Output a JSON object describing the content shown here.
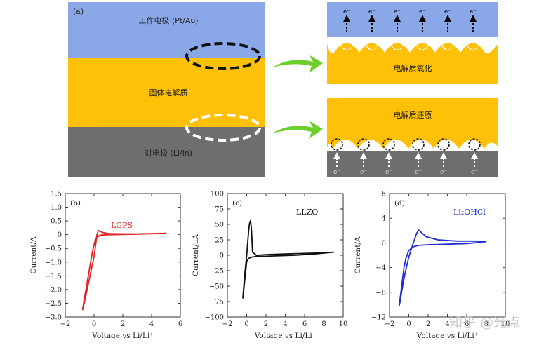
{
  "colors": {
    "electrode_blue": "#8aa8e8",
    "electrolyte_gold": "#ffc107",
    "counter_gray": "#6e6e6e",
    "arrow_green": "#6ccf2a",
    "lgps_red": "#e02020",
    "llzo_black": "#111111",
    "li2ohcl_blue": "#1f2fd0"
  },
  "panel_a": {
    "tag": "(a)",
    "working_electrode": "工作电极 (Pt/Au)",
    "solid_electrolyte": "固体电解质",
    "counter_electrode": "对电极 (Li/In)",
    "oxidation_label": "电解质氧化",
    "reduction_label": "电解质还原",
    "electron": "e⁻"
  },
  "watermark": "知乎 @光点",
  "chart_data": [
    {
      "type": "line",
      "panel": "(b)",
      "title": "LGPS",
      "xlabel": "Voltage vs Li/Li⁺",
      "ylabel": "Current/A",
      "xlim": [
        -2,
        6
      ],
      "ylim": [
        -3.0,
        1.5
      ],
      "xticks": [
        -2,
        0,
        2,
        4,
        6
      ],
      "yticks": [
        1.5,
        1.0,
        0.5,
        0,
        -0.5,
        -1.0,
        -1.5,
        -2.0,
        -2.5,
        -3.0
      ],
      "ytick_labels": [
        "1.5",
        "1.0",
        "0.5",
        "0",
        "−0.5",
        "−1.0",
        "−1.5",
        "−2.0",
        "−2.5",
        "−3.0"
      ],
      "series": [
        {
          "name": "LGPS",
          "color": "#e02020",
          "x": [
            -0.8,
            -0.6,
            -0.4,
            -0.2,
            0.0,
            0.1,
            0.2,
            0.3,
            0.6,
            1.0,
            2.0,
            3.0,
            4.0,
            5.0,
            3.0,
            1.0,
            0.4,
            0.1,
            -0.1,
            -0.3,
            -0.5,
            -0.7,
            -0.8
          ],
          "y": [
            -2.75,
            -2.3,
            -1.8,
            -1.3,
            -0.8,
            -0.4,
            0.0,
            0.15,
            0.08,
            0.04,
            0.03,
            0.03,
            0.04,
            0.05,
            0.02,
            0.0,
            -0.02,
            -0.15,
            -0.6,
            -1.2,
            -1.8,
            -2.4,
            -2.75
          ]
        }
      ]
    },
    {
      "type": "line",
      "panel": "(c)",
      "title": "LLZO",
      "xlabel": "Voltage vs Li/Li⁺",
      "ylabel": "Current/μA",
      "xlim": [
        -2,
        10
      ],
      "ylim": [
        -100,
        100
      ],
      "xticks": [
        -2,
        0,
        2,
        4,
        6,
        8,
        10
      ],
      "yticks": [
        100,
        75,
        50,
        25,
        0,
        -25,
        -50,
        -75,
        -100
      ],
      "ytick_labels": [
        "100",
        "75",
        "50",
        "25",
        "0",
        "−25",
        "−50",
        "−75",
        "−100"
      ],
      "series": [
        {
          "name": "LLZO",
          "color": "#111111",
          "x": [
            -0.4,
            -0.2,
            0.0,
            0.1,
            0.2,
            0.3,
            0.4,
            0.5,
            0.6,
            1.0,
            2.0,
            4.0,
            6.0,
            8.0,
            9.0,
            7.0,
            5.0,
            3.0,
            1.0,
            0.5,
            0.2,
            0.0,
            -0.2,
            -0.4
          ],
          "y": [
            -70,
            -30,
            0,
            20,
            40,
            52,
            56,
            40,
            5,
            0,
            1,
            2,
            3,
            4,
            5,
            2,
            0,
            -1,
            -2,
            -3,
            -5,
            -10,
            -40,
            -70
          ]
        }
      ]
    },
    {
      "type": "line",
      "panel": "(d)",
      "title": "Li₂OHCl",
      "xlabel": "Voltage vs Li/Li⁺",
      "ylabel": "Current/A",
      "xlim": [
        -2,
        10
      ],
      "ylim": [
        -12,
        8
      ],
      "xticks": [
        -2,
        0,
        2,
        4,
        6,
        8,
        10
      ],
      "yticks": [
        8,
        4,
        0,
        -4,
        -8,
        -12
      ],
      "ytick_labels": [
        "8",
        "4",
        "0",
        "−4",
        "−8",
        "−12"
      ],
      "series": [
        {
          "name": "Li2OHCl",
          "color": "#1f2fd0",
          "x": [
            -1.0,
            -0.9,
            -0.7,
            -0.4,
            0.0,
            0.4,
            0.8,
            1.0,
            1.3,
            1.8,
            3.0,
            5.0,
            7.0,
            8.0,
            6.0,
            4.0,
            2.0,
            1.0,
            0.5,
            0.0,
            -0.3,
            -0.5,
            -0.7,
            -0.9,
            -1.0
          ],
          "y": [
            -10.2,
            -9.5,
            -7.5,
            -5.0,
            -2.3,
            -0.3,
            1.5,
            2.1,
            1.7,
            1.0,
            0.5,
            0.3,
            0.3,
            0.2,
            -0.1,
            -0.2,
            -0.3,
            -0.4,
            -0.6,
            -1.2,
            -2.5,
            -4.0,
            -6.5,
            -9.0,
            -10.2
          ]
        }
      ]
    }
  ]
}
